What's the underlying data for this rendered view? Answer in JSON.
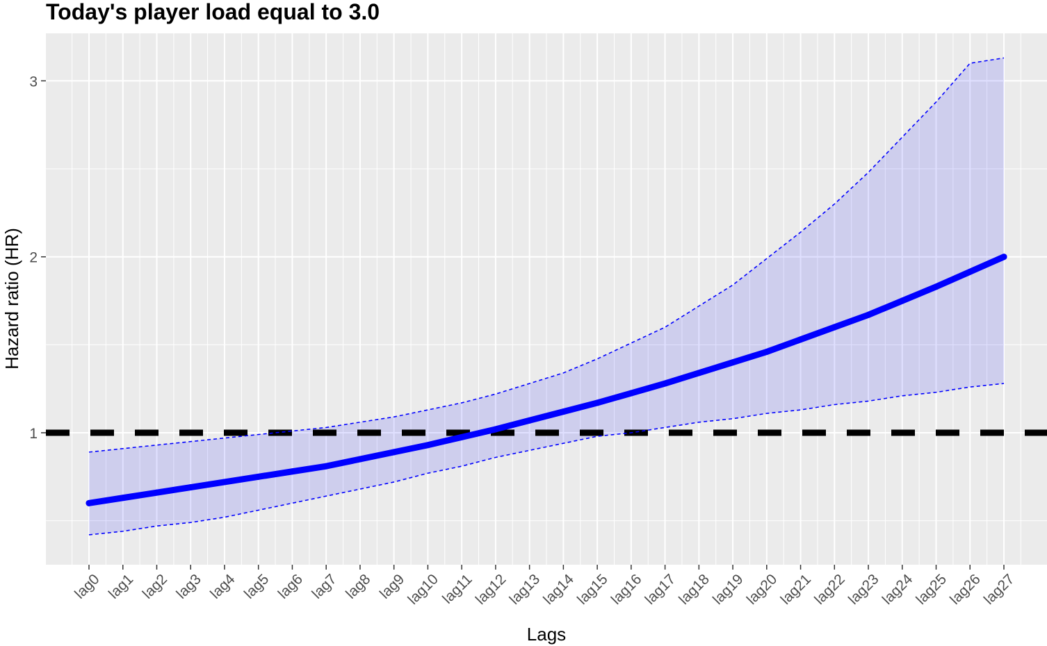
{
  "chart_data": {
    "type": "line",
    "title": "Today's player load equal to 3.0",
    "xlabel": "Lags",
    "ylabel": "Hazard ratio (HR)",
    "categories": [
      "lag0",
      "lag1",
      "lag2",
      "lag3",
      "lag4",
      "lag5",
      "lag6",
      "lag7",
      "lag8",
      "lag9",
      "lag10",
      "lag11",
      "lag12",
      "lag13",
      "lag14",
      "lag15",
      "lag16",
      "lag17",
      "lag18",
      "lag19",
      "lag20",
      "lag21",
      "lag22",
      "lag23",
      "lag24",
      "lag25",
      "lag26",
      "lag27"
    ],
    "y_ticks": [
      1,
      2,
      3
    ],
    "ylim": [
      0.25,
      3.27
    ],
    "grid": true,
    "legend": "none",
    "reference_line": {
      "y": 1,
      "style": "dashed",
      "color": "#000000"
    },
    "series": [
      {
        "values": [
          0.6,
          0.63,
          0.66,
          0.69,
          0.72,
          0.75,
          0.78,
          0.81,
          0.85,
          0.89,
          0.93,
          0.975,
          1.02,
          1.07,
          1.12,
          1.17,
          1.225,
          1.28,
          1.34,
          1.4,
          1.46,
          1.53,
          1.6,
          1.67,
          1.75,
          1.83,
          1.915,
          2.0
        ],
        "color": "#0000ff",
        "lower": [
          0.42,
          0.44,
          0.47,
          0.49,
          0.52,
          0.56,
          0.6,
          0.64,
          0.68,
          0.72,
          0.77,
          0.81,
          0.86,
          0.9,
          0.94,
          0.98,
          1.0,
          1.03,
          1.06,
          1.08,
          1.11,
          1.13,
          1.16,
          1.18,
          1.21,
          1.23,
          1.26,
          1.28
        ],
        "upper": [
          0.89,
          0.91,
          0.93,
          0.95,
          0.97,
          0.99,
          1.01,
          1.03,
          1.06,
          1.09,
          1.13,
          1.17,
          1.22,
          1.28,
          1.34,
          1.42,
          1.51,
          1.6,
          1.72,
          1.84,
          1.99,
          2.14,
          2.3,
          2.48,
          2.68,
          2.88,
          3.1,
          3.13
        ]
      }
    ],
    "colors": {
      "panel": "#ebebeb",
      "grid": "#ffffff",
      "ribbon": "#0000ff",
      "ribbon_opacity": 0.12
    }
  }
}
